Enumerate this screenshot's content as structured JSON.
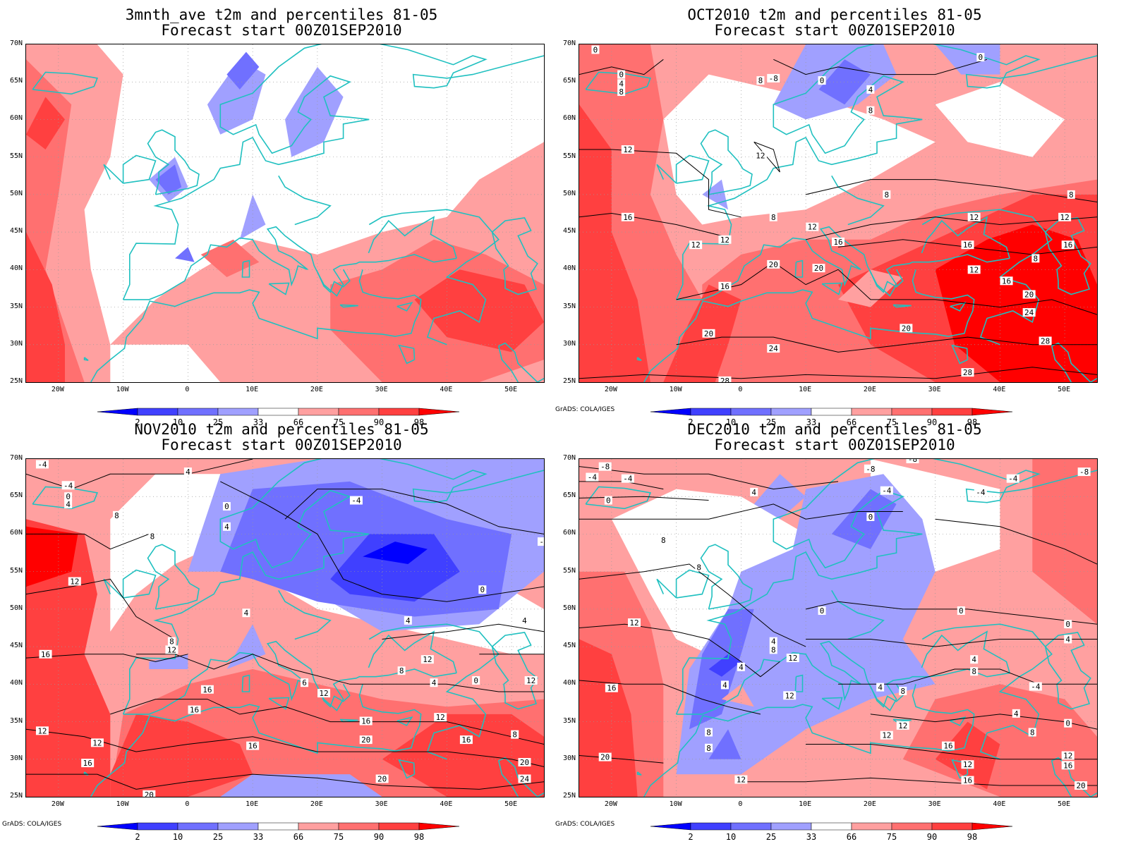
{
  "colorbar": {
    "labels": [
      "2",
      "10",
      "25",
      "33",
      "66",
      "75",
      "90",
      "98"
    ],
    "colors": [
      "#0000ff",
      "#4040ff",
      "#7070ff",
      "#a0a0ff",
      "#ffffff",
      "#ffa0a0",
      "#ff7070",
      "#ff4040",
      "#ff0000"
    ]
  },
  "credit": "GrADS: COLA/IGES",
  "lat_labels": [
    "70N",
    "65N",
    "60N",
    "55N",
    "50N",
    "45N",
    "40N",
    "35N",
    "30N",
    "25N"
  ],
  "lon_labels": [
    "20W",
    "10W",
    "0",
    "10E",
    "20E",
    "30E",
    "40E",
    "50E"
  ],
  "map_range": {
    "lon": [
      -25,
      55
    ],
    "lat": [
      25,
      70
    ]
  },
  "coastline_color": "#20c0c0",
  "panels": [
    {
      "title": "3mnth_ave t2m and percentiles 81-05",
      "subtitle": "Forecast start 00Z01SEP2010",
      "show_credit": false,
      "contour_labels": []
    },
    {
      "title": "OCT2010 t2m and percentiles 81-05",
      "subtitle": "Forecast start 00Z01SEP2010",
      "show_credit": true,
      "contour_labels": [
        {
          "text": "0",
          "lon": -22.5,
          "lat": 69.3
        },
        {
          "text": "0",
          "lon": -18.5,
          "lat": 66
        },
        {
          "text": "4",
          "lon": -18.5,
          "lat": 64.8
        },
        {
          "text": "8",
          "lon": -18.5,
          "lat": 63.7
        },
        {
          "text": "8",
          "lon": 3,
          "lat": 65.2
        },
        {
          "text": "-8",
          "lon": 5,
          "lat": 65.5
        },
        {
          "text": "0",
          "lon": 12.5,
          "lat": 65.2
        },
        {
          "text": "0",
          "lon": 37,
          "lat": 68.3
        },
        {
          "text": "4",
          "lon": 20,
          "lat": 64
        },
        {
          "text": "8",
          "lon": 20,
          "lat": 61.2
        },
        {
          "text": "12",
          "lon": -17.5,
          "lat": 56
        },
        {
          "text": "12",
          "lon": 3,
          "lat": 55.2
        },
        {
          "text": "8",
          "lon": 5,
          "lat": 47
        },
        {
          "text": "12",
          "lon": 11,
          "lat": 45.7
        },
        {
          "text": "16",
          "lon": -17.5,
          "lat": 47
        },
        {
          "text": "12",
          "lon": -7,
          "lat": 43.3
        },
        {
          "text": "12",
          "lon": -2.5,
          "lat": 44
        },
        {
          "text": "16",
          "lon": 15,
          "lat": 43.7
        },
        {
          "text": "20",
          "lon": 5,
          "lat": 40.7
        },
        {
          "text": "20",
          "lon": 12,
          "lat": 40.2
        },
        {
          "text": "16",
          "lon": -2.5,
          "lat": 37.8
        },
        {
          "text": "20",
          "lon": -5,
          "lat": 31.5
        },
        {
          "text": "24",
          "lon": 5,
          "lat": 29.5
        },
        {
          "text": "28",
          "lon": -2.5,
          "lat": 25.2
        },
        {
          "text": "8",
          "lon": 22.5,
          "lat": 50
        },
        {
          "text": "8",
          "lon": 51,
          "lat": 50
        },
        {
          "text": "12",
          "lon": 36,
          "lat": 47
        },
        {
          "text": "12",
          "lon": 50,
          "lat": 47
        },
        {
          "text": "16",
          "lon": 35,
          "lat": 43.3
        },
        {
          "text": "16",
          "lon": 50.5,
          "lat": 43.3
        },
        {
          "text": "8",
          "lon": 45.5,
          "lat": 41.5
        },
        {
          "text": "12",
          "lon": 36,
          "lat": 40
        },
        {
          "text": "16",
          "lon": 41,
          "lat": 38.5
        },
        {
          "text": "20",
          "lon": 44.5,
          "lat": 36.7
        },
        {
          "text": "20",
          "lon": 25.5,
          "lat": 32.2
        },
        {
          "text": "24",
          "lon": 44.5,
          "lat": 34.3
        },
        {
          "text": "28",
          "lon": 47,
          "lat": 30.5
        },
        {
          "text": "28",
          "lon": 35,
          "lat": 26.3
        }
      ]
    },
    {
      "title": "NOV2010 t2m and percentiles 81-05",
      "subtitle": "Forecast start 00Z01SEP2010",
      "show_credit": true,
      "contour_labels": [
        {
          "text": "-4",
          "lon": -22.5,
          "lat": 69.3
        },
        {
          "text": "-4",
          "lon": -18.5,
          "lat": 66.5
        },
        {
          "text": "0",
          "lon": -18.5,
          "lat": 65
        },
        {
          "text": "4",
          "lon": -18.5,
          "lat": 64
        },
        {
          "text": "4",
          "lon": 0,
          "lat": 68.3
        },
        {
          "text": "-4",
          "lon": 26,
          "lat": 64.5
        },
        {
          "text": "0",
          "lon": 6,
          "lat": 63.7
        },
        {
          "text": "4",
          "lon": 6,
          "lat": 61
        },
        {
          "text": "8",
          "lon": -11,
          "lat": 62.5
        },
        {
          "text": "8",
          "lon": -5.5,
          "lat": 59.7
        },
        {
          "text": "-4",
          "lon": 55,
          "lat": 59
        },
        {
          "text": "12",
          "lon": -17.5,
          "lat": 53.7
        },
        {
          "text": "0",
          "lon": 45.5,
          "lat": 52.6
        },
        {
          "text": "4",
          "lon": 9,
          "lat": 49.5
        },
        {
          "text": "4",
          "lon": 34,
          "lat": 48.5
        },
        {
          "text": "4",
          "lon": 52,
          "lat": 48.5
        },
        {
          "text": "16",
          "lon": -22,
          "lat": 44
        },
        {
          "text": "8",
          "lon": -2.5,
          "lat": 45.7
        },
        {
          "text": "12",
          "lon": -2.5,
          "lat": 44.6
        },
        {
          "text": "8",
          "lon": 33,
          "lat": 41.8
        },
        {
          "text": "12",
          "lon": 37,
          "lat": 43.3
        },
        {
          "text": "4",
          "lon": 38,
          "lat": 40.2
        },
        {
          "text": "0",
          "lon": 44.5,
          "lat": 40.5
        },
        {
          "text": "12",
          "lon": 53,
          "lat": 40.5
        },
        {
          "text": "6",
          "lon": 18,
          "lat": 40.2
        },
        {
          "text": "12",
          "lon": 21,
          "lat": 38.8
        },
        {
          "text": "16",
          "lon": 3,
          "lat": 39.3
        },
        {
          "text": "16",
          "lon": 1,
          "lat": 36.6
        },
        {
          "text": "12",
          "lon": -22.5,
          "lat": 33.8
        },
        {
          "text": "12",
          "lon": -14,
          "lat": 32.2
        },
        {
          "text": "16",
          "lon": -15.5,
          "lat": 29.5
        },
        {
          "text": "16",
          "lon": 10,
          "lat": 31.8
        },
        {
          "text": "16",
          "lon": 27.5,
          "lat": 35.1
        },
        {
          "text": "12",
          "lon": 39,
          "lat": 35.6
        },
        {
          "text": "16",
          "lon": 43,
          "lat": 32.6
        },
        {
          "text": "20",
          "lon": 27.5,
          "lat": 32.6
        },
        {
          "text": "8",
          "lon": 50.5,
          "lat": 33.3
        },
        {
          "text": "20",
          "lon": 52,
          "lat": 29.6
        },
        {
          "text": "24",
          "lon": 52,
          "lat": 27.4
        },
        {
          "text": "20",
          "lon": 30,
          "lat": 27.4
        },
        {
          "text": "20",
          "lon": -6,
          "lat": 25.3
        }
      ]
    },
    {
      "title": "DEC2010 t2m and percentiles 81-05",
      "subtitle": "Forecast start 00Z01SEP2010",
      "show_credit": true,
      "contour_labels": [
        {
          "text": "-8",
          "lon": -21,
          "lat": 69
        },
        {
          "text": "-4",
          "lon": -23,
          "lat": 67.6
        },
        {
          "text": "-4",
          "lon": -17.5,
          "lat": 67.4
        },
        {
          "text": "0",
          "lon": -20.5,
          "lat": 64.5
        },
        {
          "text": "4",
          "lon": 2,
          "lat": 65.6
        },
        {
          "text": "-8",
          "lon": 20,
          "lat": 68.7
        },
        {
          "text": "-8",
          "lon": 26.5,
          "lat": 70
        },
        {
          "text": "-4",
          "lon": 22.5,
          "lat": 65.8
        },
        {
          "text": "0",
          "lon": 20,
          "lat": 62.3
        },
        {
          "text": "-4",
          "lon": 42,
          "lat": 67.4
        },
        {
          "text": "-4",
          "lon": 37,
          "lat": 65.6
        },
        {
          "text": "-8",
          "lon": 53,
          "lat": 68.3
        },
        {
          "text": "8",
          "lon": -12,
          "lat": 59.2
        },
        {
          "text": "8",
          "lon": -6.5,
          "lat": 55.6
        },
        {
          "text": "12",
          "lon": -16.5,
          "lat": 48.2
        },
        {
          "text": "0",
          "lon": 12.5,
          "lat": 49.8
        },
        {
          "text": "0",
          "lon": 34,
          "lat": 49.8
        },
        {
          "text": "0",
          "lon": 50.5,
          "lat": 48
        },
        {
          "text": "4",
          "lon": 50.5,
          "lat": 46
        },
        {
          "text": "4",
          "lon": 5,
          "lat": 45.7
        },
        {
          "text": "8",
          "lon": 5,
          "lat": 44.6
        },
        {
          "text": "12",
          "lon": 8,
          "lat": 43.5
        },
        {
          "text": "4",
          "lon": 0,
          "lat": 42.3
        },
        {
          "text": "4",
          "lon": -2.5,
          "lat": 39.9
        },
        {
          "text": "12",
          "lon": 7.5,
          "lat": 38.5
        },
        {
          "text": "16",
          "lon": -20,
          "lat": 39.5
        },
        {
          "text": "4",
          "lon": 21.5,
          "lat": 39.6
        },
        {
          "text": "8",
          "lon": 25,
          "lat": 39.1
        },
        {
          "text": "4",
          "lon": 36,
          "lat": 43.3
        },
        {
          "text": "8",
          "lon": 36,
          "lat": 41.7
        },
        {
          "text": "-4",
          "lon": 45.5,
          "lat": 39.7
        },
        {
          "text": "4",
          "lon": 42.5,
          "lat": 36.1
        },
        {
          "text": "8",
          "lon": 45,
          "lat": 33.6
        },
        {
          "text": "0",
          "lon": 50.5,
          "lat": 34.8
        },
        {
          "text": "12",
          "lon": 25,
          "lat": 34.5
        },
        {
          "text": "12",
          "lon": 22.5,
          "lat": 33.2
        },
        {
          "text": "16",
          "lon": 32,
          "lat": 31.8
        },
        {
          "text": "12",
          "lon": 35,
          "lat": 29.3
        },
        {
          "text": "16",
          "lon": 35,
          "lat": 27.2
        },
        {
          "text": "12",
          "lon": 50.5,
          "lat": 30.5
        },
        {
          "text": "16",
          "lon": 50.5,
          "lat": 29.2
        },
        {
          "text": "20",
          "lon": 52.5,
          "lat": 26.5
        },
        {
          "text": "8",
          "lon": -5,
          "lat": 33.6
        },
        {
          "text": "8",
          "lon": -5,
          "lat": 31.5
        },
        {
          "text": "12",
          "lon": 0,
          "lat": 27.3
        },
        {
          "text": "20",
          "lon": -21,
          "lat": 30.3
        }
      ]
    }
  ]
}
